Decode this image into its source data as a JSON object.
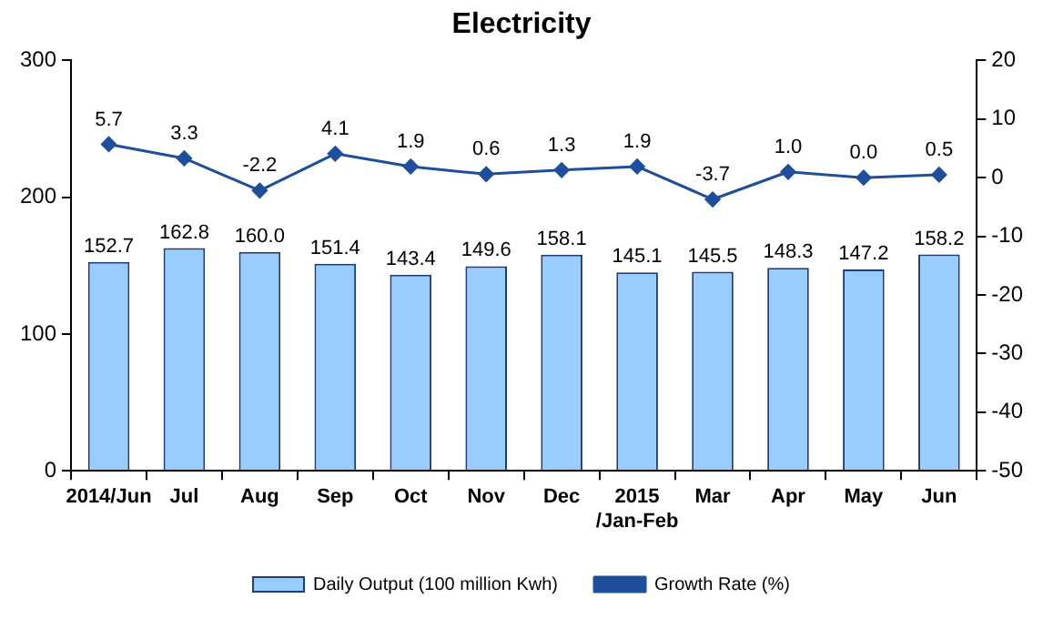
{
  "chart_data": {
    "type": "bar",
    "title": "Electricity",
    "categories": [
      "2014/Jun",
      "Jul",
      "Aug",
      "Sep",
      "Oct",
      "Nov",
      "Dec",
      "2015\n/Jan-Feb",
      "Mar",
      "Apr",
      "May",
      "Jun"
    ],
    "series": [
      {
        "name": "Daily Output (100 million Kwh)",
        "color": "#99ccff",
        "values": [
          152.7,
          162.8,
          160.0,
          151.4,
          143.4,
          149.6,
          158.1,
          145.1,
          145.5,
          148.3,
          147.2,
          158.2
        ],
        "value_labels": [
          "152.7",
          "162.8",
          "160.0",
          "151.4",
          "143.4",
          "149.6",
          "158.1",
          "145.1",
          "145.5",
          "148.3",
          "147.2",
          "158.2"
        ]
      },
      {
        "name": "Growth Rate (%)",
        "type": "line",
        "axis": "y2",
        "color": "#1f4e9a",
        "values": [
          5.7,
          3.3,
          -2.2,
          4.1,
          1.9,
          0.6,
          1.3,
          1.9,
          -3.7,
          1.0,
          0.0,
          0.5
        ],
        "value_labels": [
          "5.7",
          "3.3",
          "-2.2",
          "4.1",
          "1.9",
          "0.6",
          "1.3",
          "1.9",
          "-3.7",
          "1.0",
          "0.0",
          "0.5"
        ]
      }
    ],
    "ylim": [
      0,
      300
    ],
    "yticks": [
      0,
      100,
      200,
      300
    ],
    "y2lim": [
      -50,
      20
    ],
    "y2ticks": [
      -50,
      -40,
      -30,
      -20,
      -10,
      0,
      10,
      20
    ],
    "legend": "bottom",
    "marker": "diamond",
    "line_style": "solid"
  }
}
